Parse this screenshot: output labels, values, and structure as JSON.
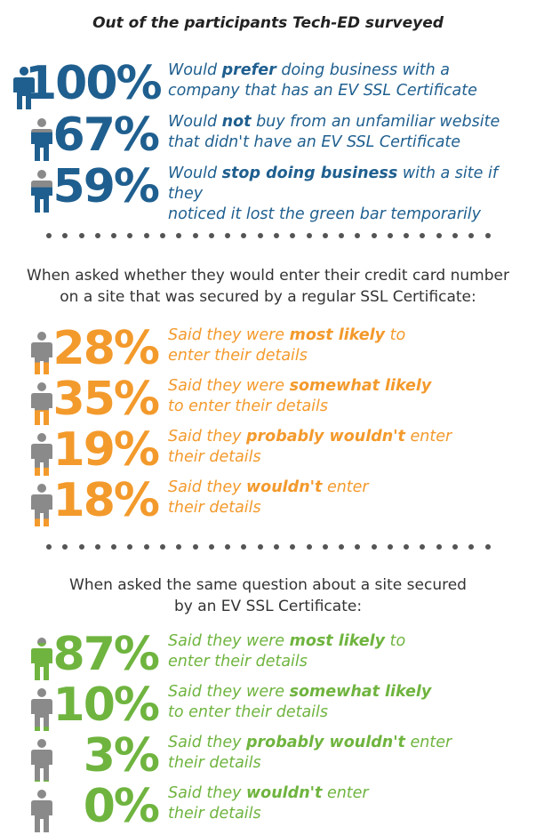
{
  "title": "Out of the participants Tech-ED surveyed",
  "colors": {
    "blue": "#1f5f8f",
    "orange": "#f39a2c",
    "green": "#6fb43f",
    "gray": "#8a8a8a"
  },
  "section1": {
    "rows": [
      {
        "percent": "100%",
        "fill": 1.0,
        "pre": "Would ",
        "strong": "prefer",
        "post": " doing business with a\ncompany that has an EV SSL Certificate"
      },
      {
        "percent": "67%",
        "fill": 0.67,
        "pre": "Would ",
        "strong": "not",
        "post": " buy from an unfamiliar website\nthat didn't have an EV SSL Certificate"
      },
      {
        "percent": "59%",
        "fill": 0.59,
        "pre": "Would ",
        "strong": "stop doing business",
        "post": " with a site if they\nnoticed it lost the green bar temporarily"
      }
    ]
  },
  "section2": {
    "heading": "When asked whether they would enter their credit card number\non a site that was secured by a regular SSL Certificate:",
    "rows": [
      {
        "percent": "28%",
        "fill": 0.28,
        "pre": "Said they were ",
        "strong": "most likely",
        "post": " to\nenter their details"
      },
      {
        "percent": "35%",
        "fill": 0.35,
        "pre": "Said they were ",
        "strong": "somewhat likely",
        "post": "\nto enter their details"
      },
      {
        "percent": "19%",
        "fill": 0.19,
        "pre": "Said they ",
        "strong": "probably wouldn't",
        "post": " enter\ntheir details"
      },
      {
        "percent": "18%",
        "fill": 0.18,
        "pre": "Said they ",
        "strong": "wouldn't",
        "post": " enter\ntheir details"
      }
    ]
  },
  "section3": {
    "heading": "When asked the same question about a site secured\nby an EV SSL Certificate:",
    "rows": [
      {
        "percent": "87%",
        "fill": 0.87,
        "pre": "Said they were ",
        "strong": "most likely",
        "post": " to\nenter their details"
      },
      {
        "percent": "10%",
        "fill": 0.1,
        "pre": "Said they were ",
        "strong": "somewhat likely",
        "post": "\nto enter their details"
      },
      {
        "percent": "3%",
        "fill": 0.03,
        "pre": "Said they ",
        "strong": "probably wouldn't",
        "post": " enter\ntheir details"
      },
      {
        "percent": "0%",
        "fill": 0.0,
        "pre": "Said they ",
        "strong": "wouldn't",
        "post": " enter\ntheir details"
      }
    ]
  }
}
